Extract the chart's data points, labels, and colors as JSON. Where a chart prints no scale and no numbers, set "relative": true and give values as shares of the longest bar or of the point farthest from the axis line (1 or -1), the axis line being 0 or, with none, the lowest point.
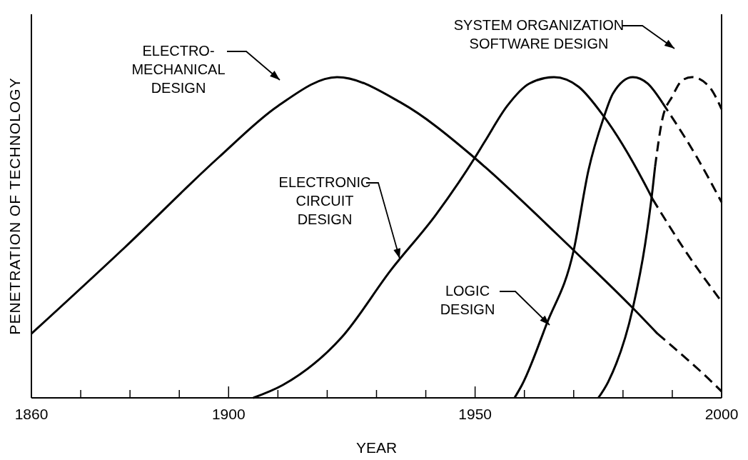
{
  "chart_data": {
    "type": "line",
    "relative": true,
    "xlabel": "YEAR",
    "ylabel": "PENETRATION OF TECHNOLOGY",
    "xlim": [
      1860,
      2000
    ],
    "xticks": [
      1860,
      {
        "value": 1870,
        "label": null
      },
      {
        "value": 1880,
        "label": null
      },
      {
        "value": 1890,
        "label": null
      },
      1900,
      {
        "value": 1910,
        "label": null
      },
      {
        "value": 1920,
        "label": null
      },
      {
        "value": 1930,
        "label": null
      },
      {
        "value": 1940,
        "label": null
      },
      1950,
      {
        "value": 1960,
        "label": null
      },
      {
        "value": 1970,
        "label": null
      },
      {
        "value": 1980,
        "label": null
      },
      {
        "value": 1990,
        "label": null
      },
      2000
    ],
    "grid": false,
    "legend": "top",
    "marker": "none",
    "series": [
      {
        "name": "ELECTRO-\nMECHANICAL\nDESIGN",
        "color": "#000000",
        "line_style": "solid",
        "x": [
          1860,
          1879,
          1898,
          1910,
          1922,
          1935,
          1949,
          1952,
          1970,
          1982,
          1987
        ],
        "values": [
          0.2,
          0.47,
          0.75,
          0.91,
          1,
          0.92,
          0.76,
          0.72,
          0.46,
          0.28,
          0.2
        ]
      },
      {
        "color": "#000000",
        "line_style": "dashed",
        "x": [
          1987,
          1998,
          2000
        ],
        "values": [
          0.2,
          0.05,
          0.02
        ]
      },
      {
        "name": "ELECTRONIC\nCIRCUIT\nDESIGN",
        "color": "#000000",
        "line_style": "solid",
        "x": [
          1905,
          1911,
          1923,
          1933,
          1942,
          1950,
          1952,
          1956.5,
          1961,
          1966,
          1971,
          1976,
          1985,
          1986
        ],
        "values": [
          0,
          0.04,
          0.19,
          0.4,
          0.57,
          0.75,
          0.8,
          0.91,
          0.98,
          1,
          0.97,
          0.88,
          0.65,
          0.62
        ]
      },
      {
        "color": "#000000",
        "line_style": "dashed",
        "x": [
          1986,
          1993,
          2000
        ],
        "values": [
          0.62,
          0.45,
          0.3
        ]
      },
      {
        "name": "LOGIC\nDESIGN",
        "color": "#000000",
        "line_style": "solid",
        "x": [
          1958,
          1959.5,
          1964.5,
          1970,
          1973,
          1976,
          1978,
          1982,
          1985,
          1988
        ],
        "values": [
          0,
          0.04,
          0.23,
          0.46,
          0.71,
          0.87,
          0.95,
          1,
          0.98,
          0.92
        ]
      },
      {
        "color": "#000000",
        "line_style": "dashed",
        "x": [
          1988,
          1995,
          2000
        ],
        "values": [
          0.92,
          0.75,
          0.61
        ]
      },
      {
        "name": "SYSTEM ORGANIZATION\nSOFTWARE DESIGN",
        "color": "#000000",
        "line_style": "solid",
        "x": [
          1975,
          1977,
          1982,
          1984.5,
          1986,
          1986.5
        ],
        "values": [
          0,
          0.05,
          0.28,
          0.48,
          0.65,
          0.72
        ]
      },
      {
        "color": "#000000",
        "line_style": "dashed",
        "x": [
          1986.5,
          1988,
          1990,
          1992,
          1994,
          1997.5,
          2000
        ],
        "values": [
          0.72,
          0.87,
          0.94,
          0.99,
          1,
          0.97,
          0.9
        ]
      }
    ]
  }
}
